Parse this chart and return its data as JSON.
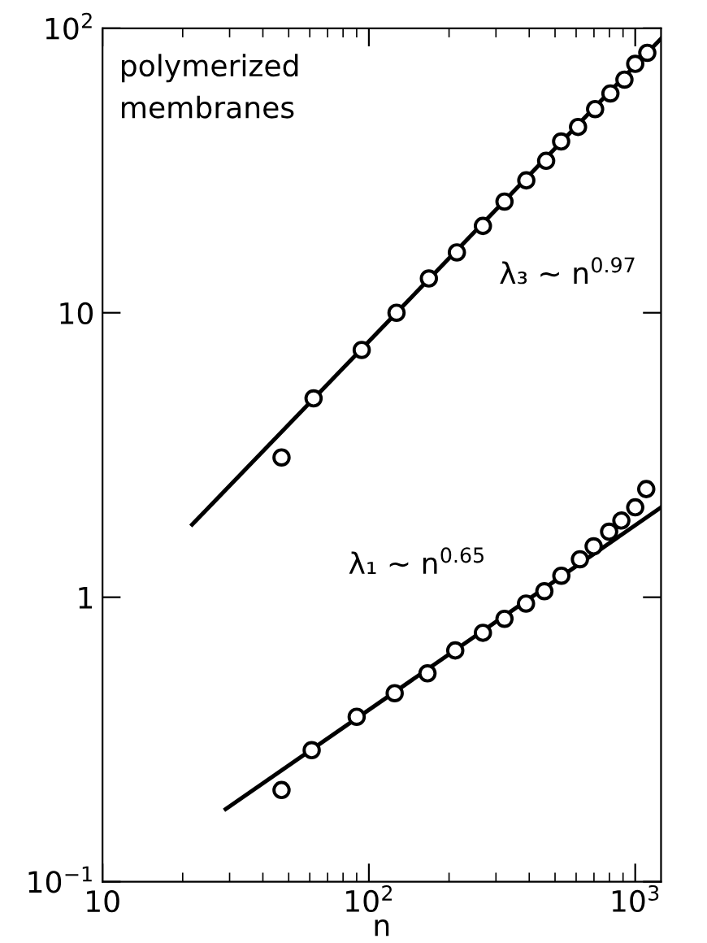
{
  "chart_data": {
    "type": "scatter",
    "xlabel": "n",
    "log": "xy",
    "xlim": [
      10,
      1250
    ],
    "ylim": [
      0.1,
      100
    ],
    "xticks": [
      {
        "value": 10,
        "label": "10"
      },
      {
        "value": 100,
        "label": "10$^{2}$"
      },
      {
        "value": 1000,
        "label": "10$^{3}$"
      }
    ],
    "yticks": [
      {
        "value": 0.1,
        "label": "10$^{−1}$"
      },
      {
        "value": 1,
        "label": "1"
      },
      {
        "value": 10,
        "label": "10"
      },
      {
        "value": 100,
        "label": "10$^{2}$"
      }
    ],
    "series": [
      {
        "marker": "circle",
        "color": "#000000",
        "x": [
          47,
          62,
          94,
          127,
          168,
          214,
          268,
          323,
          390,
          463,
          527,
          610,
          707,
          807,
          911,
          1000,
          1110
        ],
        "values": [
          3.1,
          5.0,
          7.4,
          10,
          13.2,
          16.3,
          20.2,
          24.6,
          29.2,
          34.2,
          40,
          45,
          52,
          59,
          66,
          75,
          82
        ]
      },
      {
        "type": "line",
        "line_style": "solid",
        "color": "#000000",
        "x": [
          21.7,
          1250
        ],
        "values": [
          1.8,
          92
        ]
      },
      {
        "marker": "circle",
        "color": "#000000",
        "x": [
          47,
          61,
          90,
          125,
          166,
          211,
          268,
          323,
          389,
          456,
          528,
          620,
          698,
          798,
          887,
          1000,
          1100
        ],
        "values": [
          0.21,
          0.29,
          0.38,
          0.46,
          0.54,
          0.65,
          0.75,
          0.84,
          0.95,
          1.05,
          1.19,
          1.36,
          1.51,
          1.7,
          1.86,
          2.07,
          2.4
        ]
      },
      {
        "type": "line",
        "line_style": "solid",
        "color": "#000000",
        "x": [
          29,
          1250
        ],
        "values": [
          0.18,
          2.07
        ]
      }
    ],
    "annotations": [
      "polymerized\nmembranes",
      "λ₃ ~ n$^{0.97}$",
      "λ₁ ~ n$^{0.65}$"
    ]
  }
}
